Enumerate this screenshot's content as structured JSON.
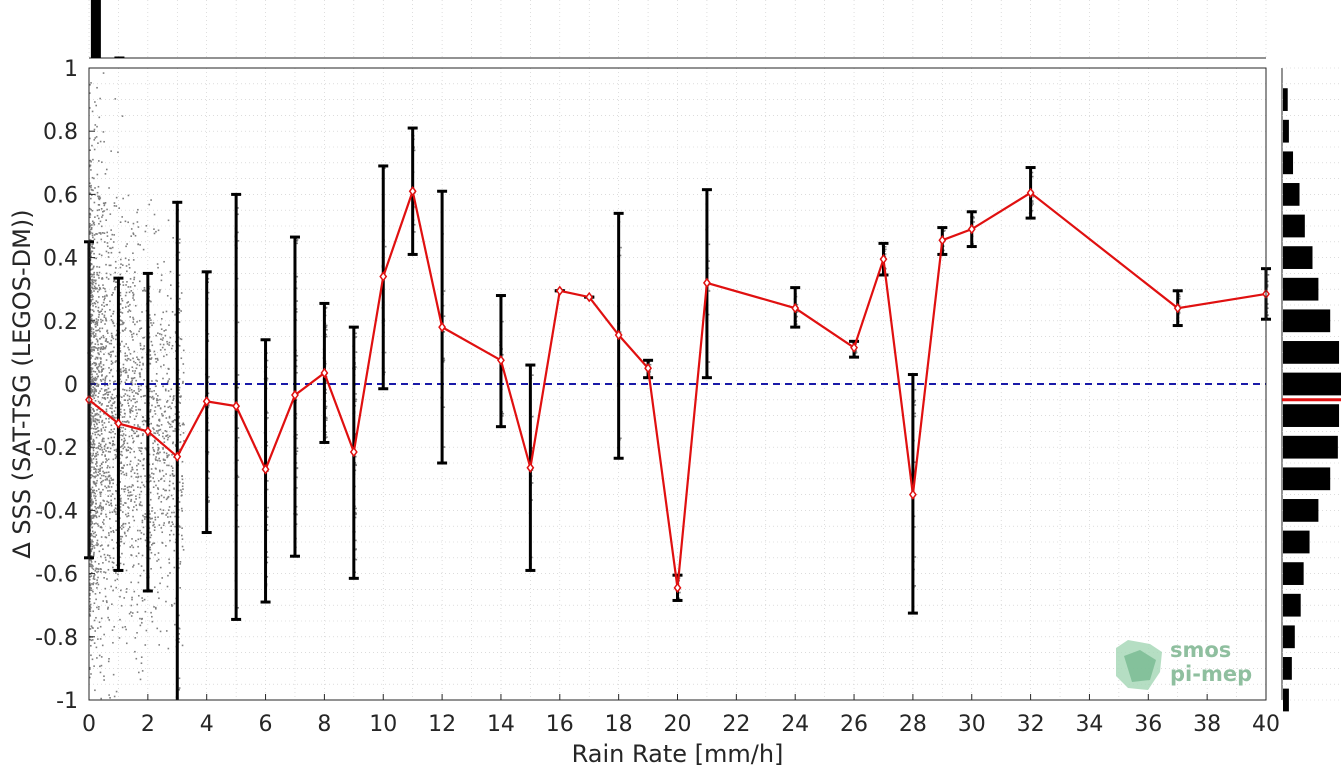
{
  "chart_data": {
    "type": "line",
    "xlabel": "Rain Rate [mm/h]",
    "ylabel": "Δ SSS (SAT-TSG (LEGOS-DM))",
    "xlim": [
      0,
      40
    ],
    "ylim": [
      -1,
      1
    ],
    "x_ticks": [
      "0",
      "2",
      "4",
      "6",
      "8",
      "10",
      "12",
      "14",
      "16",
      "18",
      "20",
      "22",
      "24",
      "26",
      "28",
      "30",
      "32",
      "34",
      "36",
      "38",
      "40"
    ],
    "y_ticks": [
      "1",
      "0.8",
      "0.6",
      "0.4",
      "0.2",
      "0",
      "-0.2",
      "-0.4",
      "-0.6",
      "-0.8",
      "-1"
    ],
    "grid": true,
    "zero_line": {
      "y": 0,
      "color": "#1a1aa8",
      "style": "dashed"
    },
    "series": [
      {
        "color": "#e01010",
        "marker": "diamond",
        "x": [
          0,
          1,
          2,
          3,
          4,
          5,
          6,
          7,
          8,
          9,
          10,
          11,
          12,
          14,
          15,
          16,
          17,
          18,
          19,
          20,
          21,
          24,
          26,
          27,
          28,
          29,
          30,
          32,
          37,
          40
        ],
        "values": [
          -0.05,
          -0.125,
          -0.15,
          -0.23,
          -0.055,
          -0.07,
          -0.27,
          -0.035,
          0.035,
          -0.215,
          0.34,
          0.61,
          0.18,
          0.075,
          -0.265,
          0.295,
          0.275,
          0.155,
          0.05,
          -0.645,
          0.32,
          0.24,
          0.115,
          0.395,
          -0.35,
          0.455,
          0.49,
          0.605,
          0.24,
          0.285
        ],
        "err_low": [
          -0.55,
          -0.59,
          -0.655,
          -1.0,
          -0.47,
          -0.745,
          -0.69,
          -0.545,
          -0.185,
          -0.615,
          -0.015,
          0.41,
          -0.25,
          -0.135,
          -0.59,
          0.295,
          0.275,
          -0.235,
          0.02,
          -0.685,
          0.02,
          0.18,
          0.085,
          0.345,
          -0.725,
          0.41,
          0.435,
          0.525,
          0.185,
          0.205
        ],
        "err_high": [
          0.45,
          0.335,
          0.35,
          0.575,
          0.355,
          0.6,
          0.14,
          0.465,
          0.255,
          0.18,
          0.69,
          0.81,
          0.61,
          0.28,
          0.06,
          0.295,
          0.275,
          0.54,
          0.075,
          -0.605,
          0.615,
          0.305,
          0.135,
          0.445,
          0.03,
          0.495,
          0.545,
          0.685,
          0.295,
          0.365
        ]
      }
    ],
    "scatter_color": "#7f7f7f",
    "histogram_right": {
      "bin_centers": [
        0.9,
        0.8,
        0.7,
        0.6,
        0.5,
        0.4,
        0.3,
        0.2,
        0.1,
        0.0,
        -0.1,
        -0.2,
        -0.3,
        -0.4,
        -0.5,
        -0.6,
        -0.7,
        -0.8,
        -0.9,
        -1.0
      ],
      "counts": [
        0.08,
        0.1,
        0.17,
        0.28,
        0.37,
        0.5,
        0.6,
        0.8,
        0.95,
        1.0,
        0.95,
        0.93,
        0.8,
        0.6,
        0.45,
        0.35,
        0.3,
        0.2,
        0.15,
        0.1
      ],
      "mean_line": -0.05,
      "mean_color": "#e01010"
    },
    "histogram_top": {
      "bin_centers": [
        0.2,
        1.0
      ],
      "counts": [
        1.0,
        0.02
      ]
    }
  },
  "watermark": {
    "line1": "smos",
    "line2": "pi-mep"
  }
}
